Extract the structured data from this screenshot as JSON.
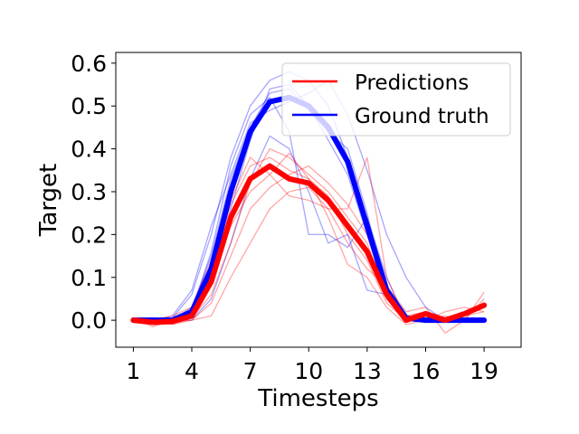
{
  "chart_data": {
    "type": "line",
    "xlabel": "Timesteps",
    "ylabel": "Target",
    "xlim": [
      0.1,
      20.9
    ],
    "ylim": [
      -0.063,
      0.625
    ],
    "xticks": [
      1,
      4,
      7,
      10,
      13,
      16,
      19
    ],
    "xtick_labels": [
      "1",
      "4",
      "7",
      "10",
      "13",
      "16",
      "19"
    ],
    "yticks": [
      0.0,
      0.1,
      0.2,
      0.3,
      0.4,
      0.5,
      0.6
    ],
    "ytick_labels": [
      "0.0",
      "0.1",
      "0.2",
      "0.3",
      "0.4",
      "0.5",
      "0.6"
    ],
    "grid": false,
    "legend_position": "upper right",
    "x": [
      1,
      2,
      3,
      4,
      5,
      6,
      7,
      8,
      9,
      10,
      11,
      12,
      13,
      14,
      15,
      16,
      17,
      18,
      19
    ],
    "series": [
      {
        "name": "Predictions",
        "color": "#ff0000",
        "values": [
          0.0,
          -0.005,
          -0.003,
          0.01,
          0.09,
          0.24,
          0.33,
          0.36,
          0.33,
          0.32,
          0.28,
          0.22,
          0.16,
          0.06,
          0.0,
          0.015,
          0.0,
          0.015,
          0.035
        ]
      },
      {
        "name": "Ground truth",
        "color": "#0000ff",
        "values": [
          0.0,
          0.0,
          0.0,
          0.02,
          0.12,
          0.3,
          0.44,
          0.51,
          0.52,
          0.5,
          0.45,
          0.37,
          0.22,
          0.07,
          0.005,
          0.0,
          0.0,
          0.0,
          0.0
        ]
      }
    ],
    "ensemble_predictions": [
      [
        0.0,
        -0.01,
        -0.005,
        0.005,
        0.06,
        0.18,
        0.32,
        0.4,
        0.38,
        0.34,
        0.3,
        0.24,
        0.18,
        0.05,
        -0.005,
        0.01,
        -0.005,
        0.02,
        0.04
      ],
      [
        0.0,
        0.005,
        0.0,
        0.02,
        0.11,
        0.27,
        0.36,
        0.38,
        0.35,
        0.33,
        0.29,
        0.2,
        0.14,
        0.04,
        0.0,
        0.02,
        0.0,
        0.01,
        0.03
      ],
      [
        0.0,
        0.0,
        -0.01,
        0.0,
        0.01,
        0.1,
        0.18,
        0.26,
        0.3,
        0.31,
        0.26,
        0.18,
        0.12,
        0.08,
        0.02,
        0.03,
        -0.03,
        0.0,
        0.065
      ],
      [
        0.005,
        -0.015,
        0.0,
        0.015,
        0.1,
        0.22,
        0.3,
        0.34,
        0.39,
        0.33,
        0.24,
        0.13,
        0.1,
        0.03,
        -0.01,
        0.0,
        0.02,
        0.03,
        0.02
      ],
      [
        0.0,
        0.0,
        0.01,
        0.03,
        0.14,
        0.28,
        0.38,
        0.34,
        0.29,
        0.28,
        0.26,
        0.26,
        0.38,
        0.1,
        0.0,
        0.0,
        0.01,
        0.0,
        0.05
      ],
      [
        0.0,
        -0.005,
        -0.005,
        0.0,
        0.04,
        0.15,
        0.26,
        0.31,
        0.34,
        0.36,
        0.32,
        0.27,
        0.2,
        0.07,
        0.01,
        0.02,
        0.0,
        0.01,
        0.02
      ]
    ],
    "ensemble_ground_truth": [
      [
        0.0,
        0.0,
        0.005,
        0.06,
        0.2,
        0.38,
        0.5,
        0.56,
        0.58,
        0.56,
        0.5,
        0.38,
        0.2,
        0.08,
        0.01,
        0.0,
        0.0,
        0.0,
        0.0
      ],
      [
        0.0,
        0.0,
        0.0,
        0.01,
        0.09,
        0.26,
        0.42,
        0.54,
        0.55,
        0.5,
        0.42,
        0.34,
        0.2,
        0.05,
        0.0,
        0.0,
        0.0,
        0.0,
        0.0
      ],
      [
        0.0,
        0.0,
        0.0,
        0.02,
        0.16,
        0.36,
        0.48,
        0.52,
        0.44,
        0.2,
        0.2,
        0.17,
        0.24,
        0.1,
        0.0,
        0.0,
        0.0,
        0.0,
        0.0
      ],
      [
        0.0,
        0.0,
        0.0,
        0.0,
        0.05,
        0.18,
        0.33,
        0.43,
        0.4,
        0.3,
        0.18,
        0.2,
        0.07,
        0.06,
        0.0,
        0.0,
        0.0,
        0.0,
        0.0
      ],
      [
        0.0,
        0.0,
        0.01,
        0.07,
        0.22,
        0.34,
        0.46,
        0.49,
        0.51,
        0.53,
        0.56,
        0.48,
        0.35,
        0.2,
        0.1,
        0.03,
        0.0,
        0.0,
        0.0
      ],
      [
        0.0,
        0.0,
        0.0,
        0.03,
        0.15,
        0.33,
        0.45,
        0.53,
        0.54,
        0.49,
        0.44,
        0.4,
        0.25,
        0.06,
        0.0,
        0.0,
        0.0,
        0.0,
        0.0
      ]
    ]
  }
}
